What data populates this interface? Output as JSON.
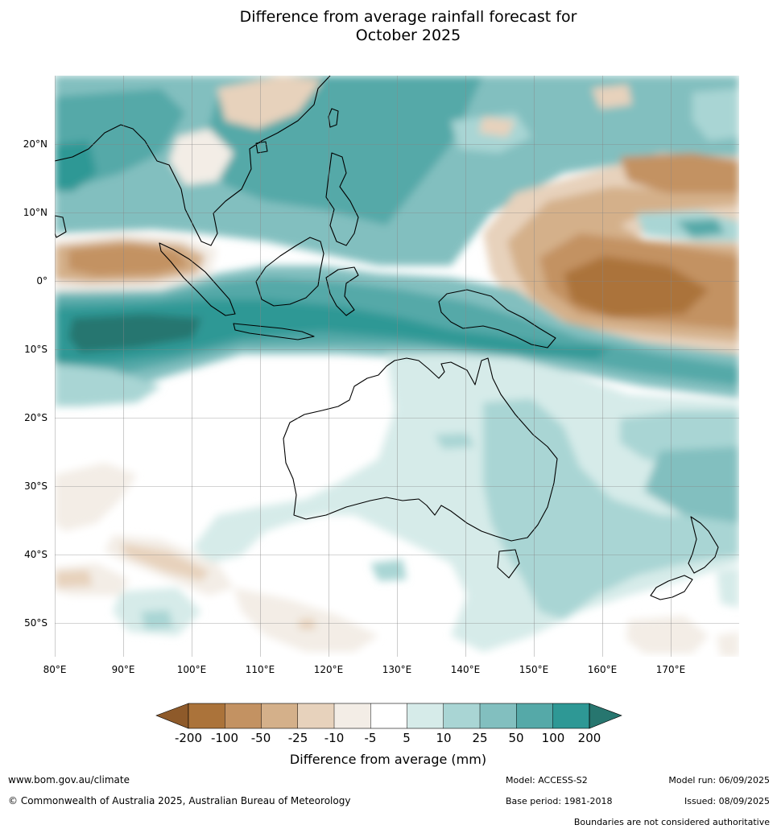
{
  "title_line1": "Difference from average rainfall forecast for",
  "title_line2": "October 2025",
  "map": {
    "lon_labels": [
      "80°E",
      "90°E",
      "100°E",
      "110°E",
      "120°E",
      "130°E",
      "140°E",
      "150°E",
      "160°E",
      "170°E"
    ],
    "lat_labels": [
      "20°N",
      "10°N",
      "0°",
      "10°S",
      "20°S",
      "30°S",
      "40°S",
      "50°S"
    ],
    "region_names": [
      "rainfall-anomaly-field",
      "australia-coast",
      "papua-new-guinea-coast",
      "new-zealand-coast",
      "sumatra-coast",
      "borneo-coast",
      "philippines-coast",
      "indochina-coast"
    ]
  },
  "colorbar": {
    "colors": [
      "#8e5a2a",
      "#ab733a",
      "#c39262",
      "#d4b08a",
      "#e7d2bc",
      "#f3ede6",
      "#ffffff",
      "#d6ebe9",
      "#a9d5d4",
      "#82bfbf",
      "#55a9a8",
      "#2e9895",
      "#27766f"
    ],
    "tick_labels": [
      "-200",
      "-100",
      "-50",
      "-25",
      "-10",
      "-5",
      "5",
      "10",
      "25",
      "50",
      "100",
      "200"
    ],
    "title": "Difference from average (mm)"
  },
  "footer": {
    "url": "www.bom.gov.au/climate",
    "copyright": "© Commonwealth of Australia 2025, Australian Bureau of Meteorology",
    "model": "Model: ACCESS-S2",
    "base_period": "Base period: 1981-2018",
    "model_run": "Model run: 06/09/2025",
    "issued": "Issued: 08/09/2025",
    "disclaimer": "Boundaries are not considered authoritative"
  }
}
